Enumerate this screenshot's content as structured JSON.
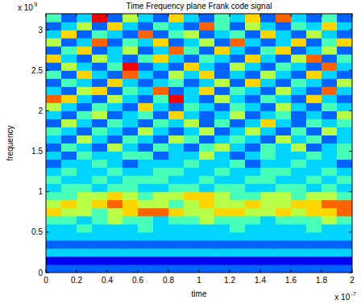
{
  "chart_data": {
    "type": "heatmap",
    "title": "Time Frequency plane Frank code signal",
    "x_label": "time",
    "y_label": "frequency",
    "annotations": [
      {
        "text": "x 10",
        "superscript": "9"
      },
      {
        "text": "x 10",
        "superscript": "-7"
      }
    ],
    "xlim": [
      0,
      2
    ],
    "ylim": [
      0,
      3.2
    ],
    "xticks": [
      0,
      0.2,
      0.4,
      0.6,
      0.8,
      1,
      1.2,
      1.4,
      1.6,
      1.8,
      2
    ],
    "yticks": [
      0,
      0.5,
      1,
      1.5,
      2,
      2.5,
      3
    ],
    "clim": [
      0,
      9
    ],
    "x_edges": [
      0,
      0.1,
      0.2,
      0.3,
      0.4,
      0.5,
      0.6,
      0.7,
      0.8,
      0.9,
      1,
      1.1,
      1.2,
      1.3,
      1.4,
      1.5,
      1.6,
      1.7,
      1.8,
      1.9,
      2
    ],
    "y_edges": [
      0,
      0.1,
      0.2,
      0.3,
      0.4,
      0.5,
      0.6,
      0.7,
      0.8,
      0.9,
      1,
      1.1,
      1.2,
      1.3,
      1.4,
      1.5,
      1.6,
      1.7,
      1.8,
      1.9,
      2,
      2.1,
      2.2,
      2.3,
      2.4,
      2.5,
      2.6,
      2.7,
      2.8,
      2.9,
      3,
      3.1,
      3.2
    ],
    "cells": [
      [
        2,
        2,
        2,
        2,
        2,
        2,
        2,
        2,
        2,
        2,
        2,
        2,
        2,
        2,
        2,
        2,
        2,
        2,
        2,
        2
      ],
      [
        1,
        1,
        1,
        1,
        1,
        1,
        1,
        1,
        1,
        1,
        1,
        1,
        1,
        1,
        1,
        1,
        1,
        1,
        1,
        1
      ],
      [
        3,
        3,
        3,
        3,
        3,
        3,
        3,
        3,
        3,
        3,
        3,
        3,
        3,
        3,
        3,
        3,
        3,
        3,
        3,
        3
      ],
      [
        2,
        2,
        2,
        2,
        2,
        2,
        2,
        2,
        2,
        2,
        2,
        2,
        2,
        2,
        2,
        2,
        2,
        2,
        2,
        2
      ],
      [
        3,
        3,
        3,
        3,
        3,
        3,
        3,
        3,
        3,
        3,
        3,
        3,
        3,
        3,
        3,
        3,
        3,
        3,
        3,
        3
      ],
      [
        3,
        3,
        4,
        3,
        3,
        3,
        4,
        3,
        3,
        3,
        3,
        3,
        4,
        3,
        3,
        3,
        3,
        4,
        3,
        3
      ],
      [
        4,
        4,
        3,
        4,
        5,
        4,
        4,
        3,
        4,
        4,
        5,
        4,
        4,
        4,
        3,
        4,
        4,
        4,
        5,
        4
      ],
      [
        6,
        5,
        5,
        4,
        5,
        6,
        7,
        7,
        6,
        5,
        5,
        6,
        6,
        5,
        5,
        6,
        5,
        6,
        6,
        7
      ],
      [
        5,
        6,
        5,
        6,
        7,
        6,
        5,
        5,
        4,
        5,
        6,
        5,
        5,
        6,
        5,
        5,
        6,
        6,
        7,
        7
      ],
      [
        4,
        4,
        5,
        5,
        6,
        5,
        4,
        5,
        5,
        6,
        6,
        5,
        4,
        4,
        5,
        5,
        4,
        5,
        5,
        4
      ],
      [
        3,
        4,
        4,
        3,
        4,
        4,
        3,
        3,
        4,
        4,
        3,
        4,
        4,
        3,
        3,
        4,
        4,
        3,
        4,
        3
      ],
      [
        4,
        3,
        3,
        4,
        3,
        4,
        4,
        4,
        3,
        3,
        4,
        3,
        3,
        4,
        4,
        3,
        3,
        4,
        3,
        4
      ],
      [
        3,
        4,
        3,
        3,
        4,
        3,
        3,
        4,
        4,
        3,
        3,
        4,
        3,
        3,
        4,
        4,
        3,
        3,
        4,
        3
      ],
      [
        2,
        3,
        3,
        4,
        3,
        2,
        3,
        3,
        3,
        4,
        3,
        3,
        4,
        2,
        3,
        3,
        4,
        3,
        3,
        2
      ],
      [
        3,
        2,
        4,
        3,
        3,
        4,
        4,
        2,
        3,
        3,
        5,
        3,
        2,
        3,
        4,
        3,
        3,
        4,
        3,
        4
      ],
      [
        2,
        4,
        3,
        2,
        5,
        3,
        2,
        4,
        3,
        2,
        4,
        5,
        3,
        2,
        4,
        3,
        5,
        2,
        3,
        4
      ],
      [
        3,
        2,
        5,
        3,
        2,
        4,
        3,
        2,
        5,
        4,
        2,
        3,
        4,
        3,
        2,
        5,
        3,
        4,
        2,
        3
      ],
      [
        4,
        3,
        2,
        4,
        3,
        2,
        5,
        3,
        2,
        3,
        5,
        2,
        3,
        5,
        3,
        2,
        4,
        2,
        5,
        3
      ],
      [
        2,
        5,
        3,
        2,
        4,
        3,
        2,
        4,
        3,
        5,
        2,
        4,
        2,
        3,
        6,
        3,
        2,
        4,
        3,
        4
      ],
      [
        3,
        2,
        4,
        5,
        2,
        3,
        4,
        2,
        6,
        3,
        2,
        3,
        5,
        2,
        3,
        4,
        2,
        3,
        2,
        5
      ],
      [
        5,
        3,
        2,
        4,
        3,
        2,
        6,
        3,
        2,
        4,
        3,
        2,
        4,
        3,
        2,
        5,
        3,
        2,
        4,
        3
      ],
      [
        7,
        6,
        3,
        2,
        5,
        3,
        2,
        4,
        8,
        3,
        2,
        5,
        3,
        2,
        4,
        3,
        2,
        6,
        3,
        2
      ],
      [
        3,
        2,
        5,
        6,
        2,
        4,
        3,
        7,
        2,
        3,
        6,
        2,
        4,
        3,
        2,
        5,
        3,
        2,
        7,
        3
      ],
      [
        2,
        4,
        3,
        2,
        6,
        3,
        2,
        3,
        4,
        2,
        3,
        5,
        2,
        6,
        3,
        2,
        4,
        3,
        2,
        5
      ],
      [
        4,
        2,
        6,
        3,
        2,
        7,
        3,
        2,
        5,
        3,
        6,
        2,
        3,
        2,
        5,
        3,
        2,
        6,
        3,
        2
      ],
      [
        2,
        5,
        3,
        2,
        4,
        8,
        2,
        3,
        2,
        6,
        3,
        2,
        5,
        3,
        2,
        4,
        3,
        2,
        7,
        3
      ],
      [
        6,
        3,
        2,
        5,
        3,
        2,
        4,
        6,
        3,
        2,
        4,
        3,
        2,
        6,
        3,
        2,
        5,
        7,
        2,
        4
      ],
      [
        2,
        4,
        6,
        2,
        3,
        5,
        2,
        3,
        7,
        4,
        2,
        6,
        3,
        2,
        4,
        6,
        2,
        3,
        5,
        2
      ],
      [
        5,
        2,
        3,
        7,
        2,
        4,
        3,
        6,
        2,
        3,
        5,
        2,
        7,
        3,
        2,
        3,
        6,
        2,
        4,
        6
      ],
      [
        3,
        6,
        2,
        4,
        3,
        2,
        7,
        2,
        4,
        5,
        2,
        3,
        4,
        2,
        6,
        3,
        2,
        5,
        3,
        2
      ],
      [
        2,
        3,
        5,
        2,
        6,
        3,
        2,
        4,
        3,
        2,
        7,
        4,
        2,
        5,
        3,
        2,
        4,
        3,
        6,
        3
      ],
      [
        4,
        2,
        3,
        8,
        2,
        5,
        3,
        2,
        6,
        3,
        2,
        4,
        3,
        6,
        2,
        7,
        3,
        2,
        4,
        2
      ]
    ]
  }
}
